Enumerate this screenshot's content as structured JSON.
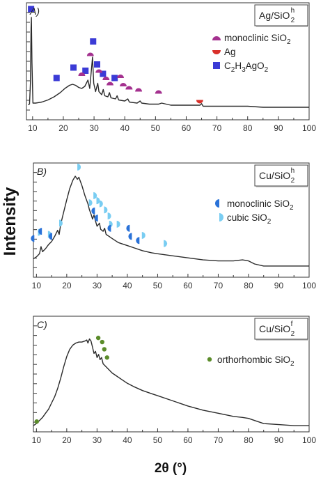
{
  "figure": {
    "ylabel": "Intensity",
    "xlabel": "2θ (°)"
  },
  "colors": {
    "trace": "#2b2b2b",
    "acetate": "#3b3bd6",
    "monoclinic_ag": "#a4318f",
    "ag": "#d9302a",
    "monoclinic_cu": "#2a72d8",
    "cubic": "#79cdf2",
    "orthorhombic": "#5b8c2a"
  },
  "chart_data": [
    {
      "type": "line",
      "panel_label": "A)",
      "sample_label": {
        "base": "Ag/SiO",
        "sub": "2",
        "sup": "h"
      },
      "xlim": [
        8,
        100
      ],
      "xticks": [
        10,
        20,
        30,
        40,
        50,
        60,
        70,
        80,
        90,
        100
      ],
      "grid": false,
      "legend_placement": "top-right",
      "legend": [
        {
          "marker": "semicircle-top",
          "color_key": "monoclinic_ag",
          "text": "monoclinic SiO",
          "sub": "2"
        },
        {
          "marker": "semicircle-bottom",
          "color_key": "ag",
          "text": "Ag",
          "sub": ""
        },
        {
          "marker": "square",
          "color_key": "acetate",
          "text": "C",
          "rich": [
            "C",
            "2",
            "H",
            "3",
            "AgO",
            "2"
          ]
        }
      ],
      "trace": [
        [
          8.5,
          0.145
        ],
        [
          9.0,
          0.15
        ],
        [
          9.3,
          0.35
        ],
        [
          9.5,
          0.88
        ],
        [
          9.6,
          0.98
        ],
        [
          9.8,
          0.55
        ],
        [
          10.1,
          0.16
        ],
        [
          11,
          0.16
        ],
        [
          13,
          0.17
        ],
        [
          15,
          0.19
        ],
        [
          17,
          0.22
        ],
        [
          19,
          0.26
        ],
        [
          20.5,
          0.3
        ],
        [
          22,
          0.33
        ],
        [
          23,
          0.34
        ],
        [
          24,
          0.33
        ],
        [
          25,
          0.31
        ],
        [
          26,
          0.3
        ],
        [
          27,
          0.32
        ],
        [
          28.0,
          0.38
        ],
        [
          28.6,
          0.3
        ],
        [
          29.5,
          0.6
        ],
        [
          29.9,
          0.35
        ],
        [
          30.5,
          0.27
        ],
        [
          31.2,
          0.35
        ],
        [
          31.6,
          0.27
        ],
        [
          32.5,
          0.24
        ],
        [
          33.0,
          0.29
        ],
        [
          33.5,
          0.23
        ],
        [
          34.5,
          0.22
        ],
        [
          35.0,
          0.26
        ],
        [
          35.5,
          0.21
        ],
        [
          37,
          0.2
        ],
        [
          37.5,
          0.23
        ],
        [
          38,
          0.19
        ],
        [
          40,
          0.18
        ],
        [
          41,
          0.2
        ],
        [
          41.5,
          0.17
        ],
        [
          44,
          0.16
        ],
        [
          45,
          0.18
        ],
        [
          45.5,
          0.16
        ],
        [
          48,
          0.15
        ],
        [
          51,
          0.15
        ],
        [
          52,
          0.16
        ],
        [
          55,
          0.14
        ],
        [
          60,
          0.14
        ],
        [
          64.5,
          0.14
        ],
        [
          65,
          0.155
        ],
        [
          65.5,
          0.13
        ],
        [
          70,
          0.13
        ],
        [
          75,
          0.13
        ],
        [
          80,
          0.13
        ],
        [
          85,
          0.12
        ],
        [
          90,
          0.12
        ],
        [
          95,
          0.12
        ],
        [
          100,
          0.12
        ]
      ],
      "markers": [
        {
          "kind": "square",
          "color_key": "acetate",
          "x": 9.5,
          "y": 1.06
        },
        {
          "kind": "square",
          "color_key": "acetate",
          "x": 17.8,
          "y": 0.4
        },
        {
          "kind": "square",
          "color_key": "acetate",
          "x": 23.3,
          "y": 0.5
        },
        {
          "kind": "square",
          "color_key": "acetate",
          "x": 27.2,
          "y": 0.47
        },
        {
          "kind": "square",
          "color_key": "acetate",
          "x": 29.7,
          "y": 0.75
        },
        {
          "kind": "square",
          "color_key": "acetate",
          "x": 31.0,
          "y": 0.53
        },
        {
          "kind": "square",
          "color_key": "acetate",
          "x": 32.9,
          "y": 0.44
        },
        {
          "kind": "square",
          "color_key": "acetate",
          "x": 36.7,
          "y": 0.4
        },
        {
          "kind": "semicircle-top",
          "color_key": "monoclinic_ag",
          "x": 26.0,
          "y": 0.42
        },
        {
          "kind": "semicircle-top",
          "color_key": "monoclinic_ag",
          "x": 28.8,
          "y": 0.61
        },
        {
          "kind": "semicircle-top",
          "color_key": "monoclinic_ag",
          "x": 31.6,
          "y": 0.45
        },
        {
          "kind": "semicircle-top",
          "color_key": "monoclinic_ag",
          "x": 33.9,
          "y": 0.38
        },
        {
          "kind": "semicircle-top",
          "color_key": "monoclinic_ag",
          "x": 35.2,
          "y": 0.33
        },
        {
          "kind": "semicircle-top",
          "color_key": "monoclinic_ag",
          "x": 38.6,
          "y": 0.4
        },
        {
          "kind": "semicircle-top",
          "color_key": "monoclinic_ag",
          "x": 39.5,
          "y": 0.32
        },
        {
          "kind": "semicircle-top",
          "color_key": "monoclinic_ag",
          "x": 41.4,
          "y": 0.29
        },
        {
          "kind": "semicircle-top",
          "color_key": "monoclinic_ag",
          "x": 44.5,
          "y": 0.27
        },
        {
          "kind": "semicircle-top",
          "color_key": "monoclinic_ag",
          "x": 51.0,
          "y": 0.25
        },
        {
          "kind": "semicircle-bottom",
          "color_key": "ag",
          "x": 64.4,
          "y": 0.19
        }
      ]
    },
    {
      "type": "line",
      "panel_label": "B)",
      "sample_label": {
        "base": "Cu/SiO",
        "sub": "2",
        "sup": "h"
      },
      "xlim": [
        9,
        100
      ],
      "xticks": [
        10,
        20,
        30,
        40,
        50,
        60,
        70,
        80,
        90,
        100
      ],
      "grid": false,
      "legend_placement": "right",
      "legend": [
        {
          "marker": "half-left",
          "color_key": "monoclinic_cu",
          "text": "monoclinic SiO",
          "sub": "2"
        },
        {
          "marker": "half-right",
          "color_key": "cubic",
          "text": "cubic SiO",
          "sub": "2"
        }
      ],
      "trace": [
        [
          9,
          0.18
        ],
        [
          10,
          0.2
        ],
        [
          11,
          0.23
        ],
        [
          11.5,
          0.3
        ],
        [
          12,
          0.25
        ],
        [
          13,
          0.28
        ],
        [
          14,
          0.32
        ],
        [
          15,
          0.35
        ],
        [
          16,
          0.4
        ],
        [
          17,
          0.46
        ],
        [
          17.5,
          0.42
        ],
        [
          18,
          0.52
        ],
        [
          19,
          0.64
        ],
        [
          20,
          0.76
        ],
        [
          21,
          0.87
        ],
        [
          22,
          0.95
        ],
        [
          22.8,
          0.99
        ],
        [
          23.5,
          0.96
        ],
        [
          24,
          0.98
        ],
        [
          25,
          0.9
        ],
        [
          26,
          0.8
        ],
        [
          27,
          0.72
        ],
        [
          27.5,
          0.66
        ],
        [
          28,
          0.62
        ],
        [
          28.5,
          0.57
        ],
        [
          29,
          0.61
        ],
        [
          29.5,
          0.55
        ],
        [
          30,
          0.5
        ],
        [
          30.8,
          0.53
        ],
        [
          31.2,
          0.47
        ],
        [
          32,
          0.45
        ],
        [
          32.5,
          0.48
        ],
        [
          33,
          0.42
        ],
        [
          34,
          0.4
        ],
        [
          35,
          0.38
        ],
        [
          36,
          0.36
        ],
        [
          37,
          0.34
        ],
        [
          38,
          0.33
        ],
        [
          40,
          0.31
        ],
        [
          42,
          0.29
        ],
        [
          45,
          0.26
        ],
        [
          48,
          0.24
        ],
        [
          50,
          0.23
        ],
        [
          55,
          0.21
        ],
        [
          60,
          0.19
        ],
        [
          65,
          0.17
        ],
        [
          70,
          0.16
        ],
        [
          75,
          0.16
        ],
        [
          78,
          0.17
        ],
        [
          80,
          0.16
        ],
        [
          82,
          0.13
        ],
        [
          85,
          0.11
        ],
        [
          90,
          0.11
        ],
        [
          95,
          0.11
        ],
        [
          100,
          0.11
        ]
      ],
      "markers": [
        {
          "kind": "half-left",
          "color_key": "monoclinic_cu",
          "x": 9.3,
          "y": 0.38
        },
        {
          "kind": "half-right",
          "color_key": "cubic",
          "x": 10.5,
          "y": 0.44
        },
        {
          "kind": "half-left",
          "color_key": "monoclinic_cu",
          "x": 11.8,
          "y": 0.45
        },
        {
          "kind": "half-right",
          "color_key": "cubic",
          "x": 13.8,
          "y": 0.42
        },
        {
          "kind": "half-left",
          "color_key": "monoclinic_cu",
          "x": 15.2,
          "y": 0.4
        },
        {
          "kind": "half-right",
          "color_key": "cubic",
          "x": 17.5,
          "y": 0.53
        },
        {
          "kind": "half-right",
          "color_key": "cubic",
          "x": 23.5,
          "y": 1.08
        },
        {
          "kind": "half-right",
          "color_key": "cubic",
          "x": 27.3,
          "y": 0.73
        },
        {
          "kind": "half-right",
          "color_key": "cubic",
          "x": 28.8,
          "y": 0.8
        },
        {
          "kind": "half-right",
          "color_key": "cubic",
          "x": 29.8,
          "y": 0.75
        },
        {
          "kind": "half-left",
          "color_key": "monoclinic_cu",
          "x": 29.3,
          "y": 0.65
        },
        {
          "kind": "half-right",
          "color_key": "cubic",
          "x": 30.8,
          "y": 0.72
        },
        {
          "kind": "half-left",
          "color_key": "monoclinic_cu",
          "x": 30.3,
          "y": 0.58
        },
        {
          "kind": "half-right",
          "color_key": "cubic",
          "x": 32.3,
          "y": 0.66
        },
        {
          "kind": "half-right",
          "color_key": "cubic",
          "x": 33.5,
          "y": 0.6
        },
        {
          "kind": "half-right",
          "color_key": "cubic",
          "x": 34.0,
          "y": 0.52
        },
        {
          "kind": "half-left",
          "color_key": "monoclinic_cu",
          "x": 34.6,
          "y": 0.48
        },
        {
          "kind": "half-right",
          "color_key": "cubic",
          "x": 36.5,
          "y": 0.52
        },
        {
          "kind": "half-left",
          "color_key": "monoclinic_cu",
          "x": 40.8,
          "y": 0.48
        },
        {
          "kind": "half-right",
          "color_key": "cubic",
          "x": 44.8,
          "y": 0.41
        },
        {
          "kind": "half-left",
          "color_key": "monoclinic_cu",
          "x": 41.5,
          "y": 0.4
        },
        {
          "kind": "half-left",
          "color_key": "monoclinic_cu",
          "x": 44.0,
          "y": 0.36
        },
        {
          "kind": "half-right",
          "color_key": "cubic",
          "x": 52.0,
          "y": 0.33
        }
      ]
    },
    {
      "type": "line",
      "panel_label": "C)",
      "sample_label": {
        "base": "Cu/SiO",
        "sub": "2",
        "sup": "f"
      },
      "xlim": [
        9,
        100
      ],
      "xticks": [
        10,
        20,
        30,
        40,
        50,
        60,
        70,
        80,
        90,
        100
      ],
      "grid": false,
      "legend_placement": "right",
      "legend": [
        {
          "marker": "circle",
          "color_key": "orthorhombic",
          "text": "orthorhombic SiO",
          "sub": "2"
        }
      ],
      "trace": [
        [
          9,
          0.06
        ],
        [
          10,
          0.08
        ],
        [
          11,
          0.11
        ],
        [
          12,
          0.14
        ],
        [
          13,
          0.18
        ],
        [
          14,
          0.22
        ],
        [
          15,
          0.28
        ],
        [
          16,
          0.34
        ],
        [
          17,
          0.42
        ],
        [
          18,
          0.52
        ],
        [
          19,
          0.63
        ],
        [
          20,
          0.73
        ],
        [
          21,
          0.8
        ],
        [
          22,
          0.84
        ],
        [
          23,
          0.86
        ],
        [
          24,
          0.87
        ],
        [
          25,
          0.87
        ],
        [
          26,
          0.88
        ],
        [
          26.6,
          0.89
        ],
        [
          27,
          0.86
        ],
        [
          27.5,
          0.9
        ],
        [
          28,
          0.88
        ],
        [
          28.5,
          0.82
        ],
        [
          29,
          0.76
        ],
        [
          29.5,
          0.78
        ],
        [
          30,
          0.72
        ],
        [
          30.5,
          0.75
        ],
        [
          31,
          0.7
        ],
        [
          31.5,
          0.72
        ],
        [
          32,
          0.66
        ],
        [
          33,
          0.63
        ],
        [
          34,
          0.6
        ],
        [
          35,
          0.57
        ],
        [
          36,
          0.55
        ],
        [
          38,
          0.51
        ],
        [
          40,
          0.47
        ],
        [
          42,
          0.44
        ],
        [
          45,
          0.4
        ],
        [
          48,
          0.37
        ],
        [
          50,
          0.35
        ],
        [
          55,
          0.3
        ],
        [
          60,
          0.25
        ],
        [
          65,
          0.21
        ],
        [
          70,
          0.18
        ],
        [
          75,
          0.15
        ],
        [
          78,
          0.14
        ],
        [
          80,
          0.13
        ],
        [
          82,
          0.11
        ],
        [
          85,
          0.08
        ],
        [
          90,
          0.07
        ],
        [
          95,
          0.06
        ],
        [
          100,
          0.06
        ]
      ],
      "markers": [
        {
          "kind": "circle",
          "color_key": "orthorhombic",
          "x": 10.1,
          "y": 0.1
        },
        {
          "kind": "circle",
          "color_key": "orthorhombic",
          "x": 30.4,
          "y": 0.91
        },
        {
          "kind": "circle",
          "color_key": "orthorhombic",
          "x": 31.7,
          "y": 0.87
        },
        {
          "kind": "circle",
          "color_key": "orthorhombic",
          "x": 32.4,
          "y": 0.8
        },
        {
          "kind": "circle",
          "color_key": "orthorhombic",
          "x": 33.3,
          "y": 0.72
        }
      ]
    }
  ]
}
